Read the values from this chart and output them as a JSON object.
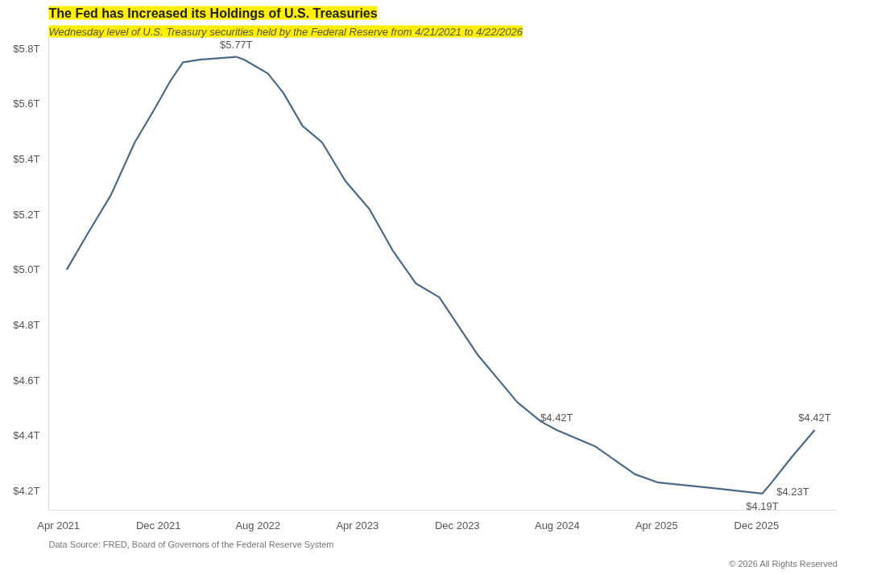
{
  "chart_data": {
    "type": "line",
    "title": "The Fed has Increased its Holdings of U.S. Treasuries",
    "subtitle": "Wednesday level of U.S. Treasury securities held by the Federal Reserve from 4/21/2021 to 4/22/2026",
    "x": [
      "2021-04-21",
      "2021-06-11",
      "2021-08-07",
      "2021-10-04",
      "2021-11-21",
      "2021-12-29",
      "2022-01-30",
      "2022-03-15",
      "2022-06-09",
      "2022-06-28",
      "2022-08-25",
      "2022-10-02",
      "2022-11-18",
      "2023-01-05",
      "2023-03-03",
      "2023-04-30",
      "2023-06-26",
      "2023-08-22",
      "2023-10-18",
      "2024-01-21",
      "2024-04-26",
      "2024-06-23",
      "2024-07-31",
      "2024-11-03",
      "2025-02-07",
      "2025-04-05",
      "2025-08-17",
      "2025-12-15",
      "2026-01-07",
      "2026-02-24",
      "2026-04-22"
    ],
    "series": [
      {
        "color": "#4b6a88",
        "values": [
          5.0,
          5.13,
          5.27,
          5.46,
          5.58,
          5.68,
          5.75,
          5.76,
          5.77,
          5.76,
          5.71,
          5.64,
          5.52,
          5.46,
          5.32,
          5.22,
          5.07,
          4.95,
          4.9,
          4.69,
          4.52,
          4.45,
          4.42,
          4.36,
          4.26,
          4.23,
          4.21,
          4.19,
          4.23,
          4.32,
          4.42
        ]
      }
    ],
    "xlim": [
      "2021-03-08",
      "2026-06-18"
    ],
    "xticks": [
      {
        "value": "2021-04-01",
        "label": "Apr 2021"
      },
      {
        "value": "2021-12-01",
        "label": "Dec 2021"
      },
      {
        "value": "2022-08-01",
        "label": "Aug 2022"
      },
      {
        "value": "2023-04-01",
        "label": "Apr 2023"
      },
      {
        "value": "2023-12-01",
        "label": "Dec 2023"
      },
      {
        "value": "2024-08-01",
        "label": "Aug 2024"
      },
      {
        "value": "2025-04-01",
        "label": "Apr 2025"
      },
      {
        "value": "2025-12-01",
        "label": "Dec 2025"
      }
    ],
    "ylim": [
      4.13,
      5.84
    ],
    "yticks": [
      {
        "value": 4.2,
        "label": "$4.2T"
      },
      {
        "value": 4.4,
        "label": "$4.4T"
      },
      {
        "value": 4.6,
        "label": "$4.6T"
      },
      {
        "value": 4.8,
        "label": "$4.8T"
      },
      {
        "value": 5.0,
        "label": "$5.0T"
      },
      {
        "value": 5.2,
        "label": "$5.2T"
      },
      {
        "value": 5.4,
        "label": "$5.4T"
      },
      {
        "value": 5.6,
        "label": "$5.6T"
      },
      {
        "value": 5.8,
        "label": "$5.8T"
      }
    ],
    "grid": false,
    "marker": "none",
    "line_style": "solid",
    "annotations": [
      {
        "text": "$5.77T",
        "x": "2022-06-09",
        "y": 5.77
      },
      {
        "text": "$4.42T",
        "x": "2024-07-31",
        "y": 4.42
      },
      {
        "text": "$4.19T",
        "x": "2025-12-15",
        "y": 4.19
      },
      {
        "text": "$4.23T",
        "x": "2026-01-07",
        "y": 4.23
      },
      {
        "text": "$4.42T",
        "x": "2026-04-22",
        "y": 4.42
      },
      "Data Source: FRED, Board of Governors of the Federal Reserve System",
      "© 2026 All Rights Reserved"
    ]
  }
}
